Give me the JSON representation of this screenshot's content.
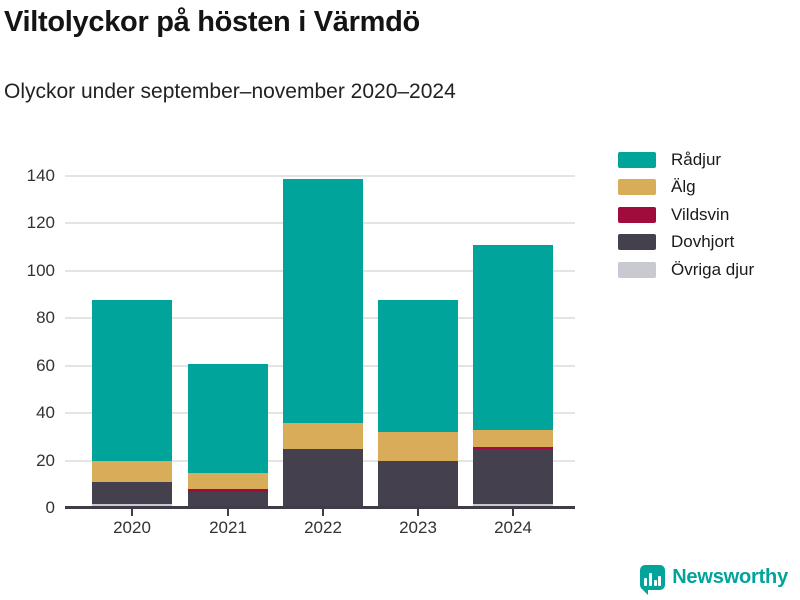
{
  "header": {
    "title": "Viltolyckor på hösten i Värmdö",
    "subtitle": "Olyckor under september–november 2020–2024"
  },
  "chart_data": {
    "type": "bar",
    "stacked": true,
    "title": "Viltolyckor på hösten i Värmdö",
    "subtitle": "Olyckor under september–november 2020–2024",
    "categories": [
      "2020",
      "2021",
      "2022",
      "2023",
      "2024"
    ],
    "series": [
      {
        "name": "Rådjur",
        "color": "#00a49a",
        "values": [
          68,
          46,
          103,
          56,
          78
        ]
      },
      {
        "name": "Älg",
        "color": "#d9ac59",
        "values": [
          9,
          7,
          11,
          12,
          7
        ]
      },
      {
        "name": "Vildsvin",
        "color": "#a00d3d",
        "values": [
          0,
          1,
          0,
          0,
          1
        ]
      },
      {
        "name": "Dovhjort",
        "color": "#44404d",
        "values": [
          9,
          6,
          24,
          19,
          23
        ]
      },
      {
        "name": "Övriga djur",
        "color": "#c9c9d2",
        "values": [
          1,
          0,
          0,
          0,
          1
        ]
      }
    ],
    "totals": [
      87,
      60,
      138,
      87,
      110
    ],
    "ylim": [
      0,
      140
    ],
    "yticks": [
      0,
      20,
      40,
      60,
      80,
      100,
      120,
      140
    ],
    "xlabel": "",
    "ylabel": "",
    "grid": true,
    "legend_position": "top-right",
    "stack_order_bottom_to_top": [
      "Övriga djur",
      "Dovhjort",
      "Vildsvin",
      "Älg",
      "Rådjur"
    ]
  },
  "colors": {
    "accent_teal": "#00a49a",
    "axis": "#3f3b48",
    "gridline": "#e4e4e7",
    "text": "#333333"
  },
  "footer": {
    "brand": "Newsworthy"
  }
}
